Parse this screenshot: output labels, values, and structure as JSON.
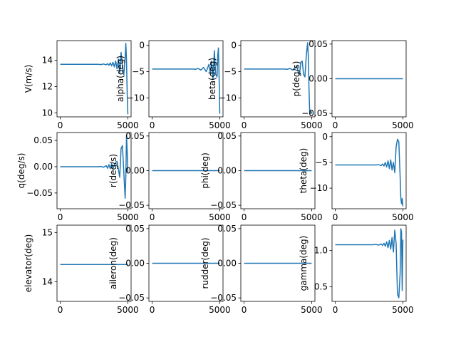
{
  "line_color": "#1f77b4",
  "chart_data": [
    {
      "type": "line",
      "ylabel": "V(m/s)",
      "xlim": [
        -240,
        5240
      ],
      "ylim": [
        9.7,
        15.5
      ],
      "xticks": [
        0,
        5000
      ],
      "yticks": [
        10,
        12,
        14
      ],
      "ytick_labels": [
        "10",
        "12",
        "14"
      ],
      "series": [
        {
          "x": [
            0,
            1000,
            2000,
            2800,
            3000,
            3200,
            3400,
            3500,
            3600,
            3700,
            3800,
            3900,
            4000,
            4100,
            4200,
            4300,
            4400,
            4500,
            4600,
            4700,
            4800,
            4850,
            4900,
            4950,
            5000
          ],
          "y": [
            13.7,
            13.7,
            13.7,
            13.7,
            13.68,
            13.72,
            13.66,
            13.75,
            13.62,
            13.8,
            13.58,
            13.85,
            13.5,
            13.95,
            13.35,
            14.1,
            13.0,
            14.6,
            13.5,
            12.9,
            14.2,
            15.3,
            14.0,
            11.5,
            9.9
          ]
        }
      ]
    },
    {
      "type": "line",
      "ylabel": "alpha(deg)",
      "xlim": [
        -240,
        5240
      ],
      "ylim": [
        -13.6,
        0.9
      ],
      "xticks": [
        0,
        5000
      ],
      "yticks": [
        0,
        -5,
        -10
      ],
      "ytick_labels": [
        "0",
        "−5",
        "−10"
      ],
      "series": [
        {
          "x": [
            0,
            1000,
            2000,
            2800,
            3000,
            3200,
            3400,
            3600,
            3800,
            4000,
            4200,
            4300,
            4400,
            4500,
            4600,
            4700,
            4800,
            4850,
            4900,
            4950,
            5000
          ],
          "y": [
            -4.5,
            -4.5,
            -4.5,
            -4.5,
            -4.5,
            -4.55,
            -4.4,
            -4.7,
            -4.2,
            -5.0,
            -3.6,
            -5.5,
            -3.0,
            -6.5,
            -1.0,
            -5.5,
            -6.0,
            -2.0,
            -0.5,
            -6.0,
            -13.0
          ]
        }
      ]
    },
    {
      "type": "line",
      "ylabel": "beta(deg)",
      "xlim": [
        -240,
        5240
      ],
      "ylim": [
        -13.6,
        0.9
      ],
      "xticks": [
        0,
        5000
      ],
      "yticks": [
        0,
        -5,
        -10
      ],
      "ytick_labels": [
        "0",
        "−5",
        "−10"
      ],
      "series": [
        {
          "x": [
            0,
            1000,
            2000,
            2800,
            3000,
            3200,
            3400,
            3600,
            3800,
            3900,
            4000,
            4100,
            4200,
            4300,
            4400,
            4500,
            4600,
            4700,
            4750,
            4800,
            4850,
            4900,
            4950,
            5000
          ],
          "y": [
            -4.5,
            -4.5,
            -4.5,
            -4.5,
            -4.5,
            -4.55,
            -4.4,
            -4.7,
            -4.2,
            -3.9,
            -5.0,
            -5.6,
            -3.2,
            -3.0,
            -5.5,
            -6.0,
            -2.0,
            0.5,
            -2.0,
            -8.0,
            -12.5,
            -13.0,
            -12.5,
            -13.0
          ]
        }
      ]
    },
    {
      "type": "line",
      "ylabel": "p(deg/s)",
      "xlim": [
        -240,
        5240
      ],
      "ylim": [
        -0.055,
        0.055
      ],
      "xticks": [
        0,
        5000
      ],
      "yticks": [
        0.05,
        0.0,
        -0.05
      ],
      "ytick_labels": [
        "0.05",
        "0.00",
        "−0.05"
      ],
      "series": [
        {
          "x": [
            0,
            5000
          ],
          "y": [
            0,
            0
          ]
        }
      ]
    },
    {
      "type": "line",
      "ylabel": "q(deg/s)",
      "xlim": [
        -240,
        5240
      ],
      "ylim": [
        -0.08,
        0.065
      ],
      "xticks": [
        0,
        5000
      ],
      "yticks": [
        0.05,
        0.0,
        -0.05
      ],
      "ytick_labels": [
        "0.05",
        "0.00",
        "−0.05"
      ],
      "series": [
        {
          "x": [
            0,
            1000,
            2000,
            2800,
            3000,
            3200,
            3400,
            3500,
            3600,
            3700,
            3800,
            3900,
            4000,
            4100,
            4200,
            4300,
            4400,
            4500,
            4600,
            4700,
            4800,
            4850,
            4900,
            4950,
            5000
          ],
          "y": [
            0,
            0,
            0,
            0,
            0.0005,
            -0.001,
            0.002,
            -0.003,
            0.004,
            -0.004,
            0.006,
            -0.004,
            0.003,
            0.008,
            0.01,
            -0.005,
            -0.02,
            0.035,
            0.04,
            -0.01,
            -0.06,
            -0.02,
            0.06,
            0.03,
            -0.01
          ]
        }
      ]
    },
    {
      "type": "line",
      "ylabel": "r(deg/s)",
      "xlim": [
        -240,
        5240
      ],
      "ylim": [
        -0.055,
        0.055
      ],
      "xticks": [
        0,
        5000
      ],
      "yticks": [
        0.05,
        0.0,
        -0.05
      ],
      "ytick_labels": [
        "0.05",
        "0.00",
        "−0.05"
      ],
      "series": [
        {
          "x": [
            0,
            5000
          ],
          "y": [
            0,
            0
          ]
        }
      ]
    },
    {
      "type": "line",
      "ylabel": "phi(deg)",
      "xlim": [
        -240,
        5240
      ],
      "ylim": [
        -0.055,
        0.055
      ],
      "xticks": [
        0,
        5000
      ],
      "yticks": [
        0.05,
        0.0,
        -0.05
      ],
      "ytick_labels": [
        "0.05",
        "0.00",
        "−0.05"
      ],
      "series": [
        {
          "x": [
            0,
            5000
          ],
          "y": [
            0,
            0
          ]
        }
      ]
    },
    {
      "type": "line",
      "ylabel": "theta(deg)",
      "xlim": [
        -240,
        5240
      ],
      "ylim": [
        -14.0,
        0.8
      ],
      "xticks": [
        0,
        5000
      ],
      "yticks": [
        0,
        -5,
        -10
      ],
      "ytick_labels": [
        "0",
        "−5",
        "−10"
      ],
      "series": [
        {
          "x": [
            0,
            1000,
            2000,
            2800,
            3000,
            3200,
            3400,
            3500,
            3600,
            3700,
            3800,
            3900,
            4000,
            4100,
            4200,
            4300,
            4400,
            4500,
            4600,
            4700,
            4800,
            4850,
            4900,
            4950,
            5000
          ],
          "y": [
            -5.5,
            -5.5,
            -5.5,
            -5.5,
            -5.5,
            -5.45,
            -5.6,
            -5.3,
            -5.7,
            -5.0,
            -5.9,
            -4.7,
            -6.2,
            -4.5,
            -6.5,
            -5.0,
            -7.0,
            -2.0,
            -0.5,
            -1.0,
            -8.0,
            -12.0,
            -13.0,
            -12.0,
            -13.5
          ]
        }
      ]
    },
    {
      "type": "line",
      "ylabel": "elevator(deg)",
      "xlim": [
        -240,
        5240
      ],
      "ylim": [
        13.6,
        15.15
      ],
      "xticks": [
        0,
        5000
      ],
      "yticks": [
        15,
        14
      ],
      "ytick_labels": [
        "15",
        "14"
      ],
      "series": [
        {
          "x": [
            0,
            5000
          ],
          "y": [
            14.35,
            14.35
          ]
        }
      ]
    },
    {
      "type": "line",
      "ylabel": "aileron(deg)",
      "xlim": [
        -240,
        5240
      ],
      "ylim": [
        -0.055,
        0.055
      ],
      "xticks": [
        0,
        5000
      ],
      "yticks": [
        0.05,
        0.0,
        -0.05
      ],
      "ytick_labels": [
        "0.05",
        "0.00",
        "−0.05"
      ],
      "series": [
        {
          "x": [
            0,
            5000
          ],
          "y": [
            0,
            0
          ]
        }
      ]
    },
    {
      "type": "line",
      "ylabel": "rudder(deg)",
      "xlim": [
        -240,
        5240
      ],
      "ylim": [
        -0.055,
        0.055
      ],
      "xticks": [
        0,
        5000
      ],
      "yticks": [
        0.05,
        0.0,
        -0.05
      ],
      "ytick_labels": [
        "0.05",
        "0.00",
        "−0.05"
      ],
      "series": [
        {
          "x": [
            0,
            5000
          ],
          "y": [
            0,
            0
          ]
        }
      ]
    },
    {
      "type": "line",
      "ylabel": "gamma(deg)",
      "xlim": [
        -240,
        5240
      ],
      "ylim": [
        0.3,
        1.35
      ],
      "xticks": [
        0,
        5000
      ],
      "yticks": [
        1.0,
        0.5
      ],
      "ytick_labels": [
        "1.0",
        "0.5"
      ],
      "series": [
        {
          "x": [
            0,
            1000,
            2000,
            2800,
            3000,
            3200,
            3400,
            3500,
            3600,
            3700,
            3800,
            3900,
            4000,
            4100,
            4200,
            4300,
            4400,
            4500,
            4600,
            4700,
            4800,
            4850,
            4900,
            4950,
            5000
          ],
          "y": [
            1.08,
            1.08,
            1.08,
            1.08,
            1.085,
            1.075,
            1.09,
            1.07,
            1.1,
            1.06,
            1.12,
            1.04,
            1.14,
            1.02,
            1.18,
            0.98,
            1.28,
            1.1,
            0.4,
            0.35,
            0.7,
            1.3,
            1.25,
            0.45,
            1.15
          ]
        }
      ]
    }
  ]
}
